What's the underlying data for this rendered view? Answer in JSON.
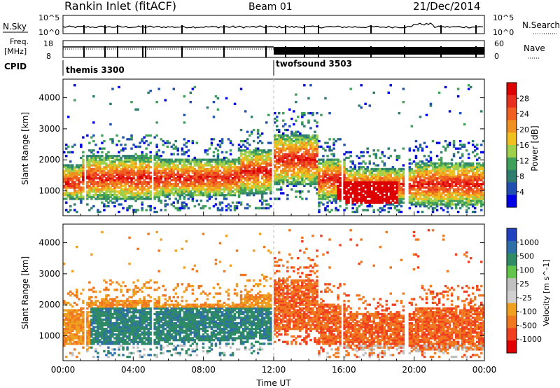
{
  "header": {
    "title": "Rankin Inlet (fitACF)",
    "beam": "Beam 01",
    "date": "21/Dec/2014"
  },
  "status_panels": {
    "nsky_label": "N.Sky",
    "nsky_tick_top": "10^5",
    "nsky_tick_bottom": "10^0",
    "nsearch_label": "N.Search",
    "nsearch_tick_top": "10^5",
    "nsearch_tick_bottom": "10^0",
    "freq_label": "Freq.",
    "freq_unit": "[MHz]",
    "freq_tick_top": "18",
    "freq_tick_bottom": "8",
    "nave_label": "Nave",
    "nave_tick_top": "60",
    "nave_tick_bottom": "0",
    "cpid_label": "CPID",
    "cpid_segments": [
      {
        "name": "themis 3300",
        "start_hour": 0,
        "end_hour": 12
      },
      {
        "name": "twofsound 3503",
        "start_hour": 12,
        "end_hour": 24
      }
    ]
  },
  "colors": {
    "power_scale": [
      "#0000e6",
      "#1f4fb0",
      "#2e7d6e",
      "#3fa05a",
      "#9fd04c",
      "#f0c020",
      "#f09020",
      "#f06020",
      "#e83020",
      "#dd0000"
    ],
    "velocity_scale": [
      "#2040c0",
      "#2f6fa8",
      "#2f8a66",
      "#62c44a",
      "#c0c0c0",
      "#d0d0d0",
      "#f0a020",
      "#f07820",
      "#f04020",
      "#e00000"
    ]
  },
  "chart_data": [
    {
      "type": "heatmap",
      "name": "power",
      "ylabel": "Slant Range [km]",
      "xlim": [
        0,
        24
      ],
      "ylim": [
        200,
        4600
      ],
      "yticks": [
        "1000",
        "2000",
        "3000",
        "4000"
      ],
      "colorbar_label": "Power [dB]",
      "colorbar_ticks": [
        "4",
        "8",
        "12",
        "16",
        "20",
        "24",
        "28"
      ],
      "colorbar_range": [
        0,
        32
      ]
    },
    {
      "type": "heatmap",
      "name": "velocity",
      "ylabel": "Slant Range [km]",
      "xlabel": "Time UT",
      "xlim": [
        0,
        24
      ],
      "ylim": [
        200,
        4600
      ],
      "xticks": [
        "00:00",
        "04:00",
        "08:00",
        "12:00",
        "16:00",
        "20:00",
        "00:00"
      ],
      "yticks": [
        "1000",
        "2000",
        "3000",
        "4000"
      ],
      "colorbar_label": "Velocity [m s^-1]",
      "colorbar_ticks": [
        "1000",
        "500",
        "100",
        "25",
        "-25",
        "-100",
        "-500",
        "-1000"
      ]
    }
  ]
}
